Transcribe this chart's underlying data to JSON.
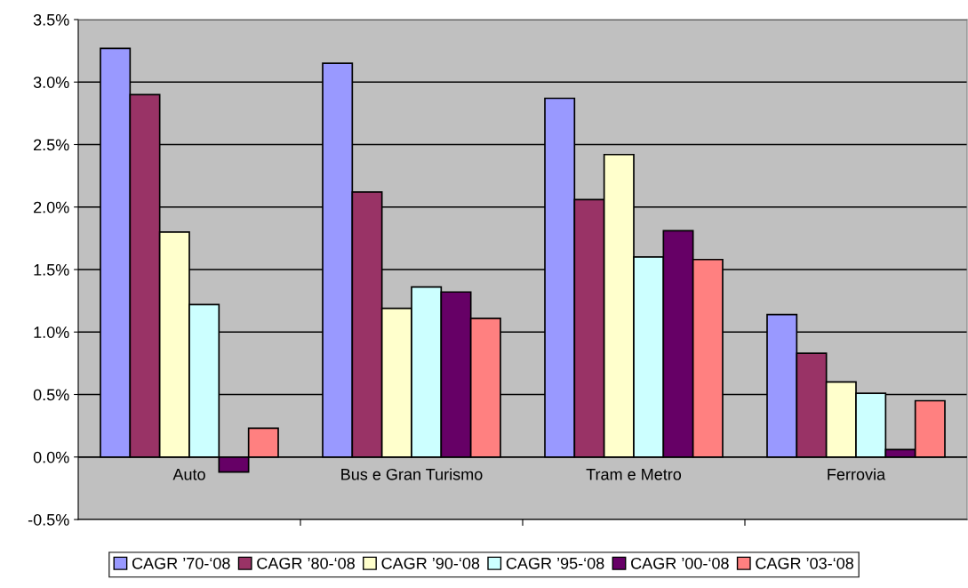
{
  "chart_data": {
    "type": "bar",
    "categories": [
      "Auto",
      "Bus e Gran Turismo",
      "Tram e Metro",
      "Ferrovia"
    ],
    "series": [
      {
        "name": "CAGR ’70-‘08",
        "color": "#9999ff",
        "values": [
          3.27,
          3.15,
          2.87,
          1.14
        ]
      },
      {
        "name": "CAGR ’80-‘08",
        "color": "#993366",
        "values": [
          2.9,
          2.12,
          2.06,
          0.83
        ]
      },
      {
        "name": "CAGR ’90-‘08",
        "color": "#ffffcc",
        "values": [
          1.8,
          1.19,
          2.42,
          0.6
        ]
      },
      {
        "name": "CAGR ’95-‘08",
        "color": "#ccffff",
        "values": [
          1.22,
          1.36,
          1.6,
          0.51
        ]
      },
      {
        "name": "CAGR ’00-‘08",
        "color": "#660066",
        "values": [
          -0.12,
          1.32,
          1.81,
          0.06
        ]
      },
      {
        "name": "CAGR ’03-‘08",
        "color": "#ff8080",
        "values": [
          0.23,
          1.11,
          1.58,
          0.45
        ]
      }
    ],
    "ylim": [
      -0.5,
      3.5
    ],
    "yticks": [
      {
        "value": -0.5,
        "label": "-0.5%"
      },
      {
        "value": 0.0,
        "label": "0.0%"
      },
      {
        "value": 0.5,
        "label": "0.5%"
      },
      {
        "value": 1.0,
        "label": "1.0%"
      },
      {
        "value": 1.5,
        "label": "1.5%"
      },
      {
        "value": 2.0,
        "label": "2.0%"
      },
      {
        "value": 2.5,
        "label": "2.5%"
      },
      {
        "value": 3.0,
        "label": "3.0%"
      },
      {
        "value": 3.5,
        "label": "3.5%"
      }
    ],
    "grid": "y",
    "legend": "bottom"
  }
}
